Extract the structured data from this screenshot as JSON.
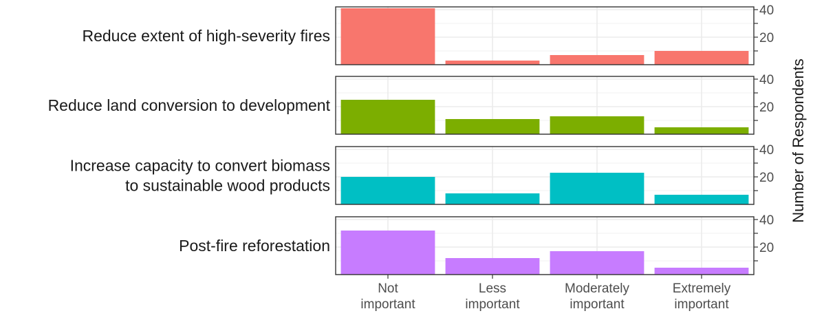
{
  "chart_data": {
    "type": "bar",
    "ylabel": "Number of Respondents",
    "xlabel": "",
    "categories": [
      "Not important",
      "Less important",
      "Moderately important",
      "Extremely important"
    ],
    "category_lines": [
      [
        "Not",
        "important"
      ],
      [
        "Less",
        "important"
      ],
      [
        "Moderately",
        "important"
      ],
      [
        "Extremely",
        "important"
      ]
    ],
    "ylim": [
      0,
      42
    ],
    "yticks": [
      20,
      40
    ],
    "grid": true,
    "facets": [
      {
        "label_lines": [
          "Reduce extent of high-severity fires"
        ],
        "color": "#F8766D",
        "values": [
          41,
          3,
          7,
          10
        ]
      },
      {
        "label_lines": [
          "Reduce land conversion to development"
        ],
        "color": "#7CAE00",
        "values": [
          25,
          11,
          13,
          5
        ]
      },
      {
        "label_lines": [
          "Increase capacity to convert biomass",
          "to sustainable wood products"
        ],
        "color": "#00BFC4",
        "values": [
          20,
          8,
          23,
          7
        ]
      },
      {
        "label_lines": [
          "Post-fire reforestation"
        ],
        "color": "#C77CFF",
        "values": [
          32,
          12,
          17,
          5
        ]
      }
    ]
  }
}
